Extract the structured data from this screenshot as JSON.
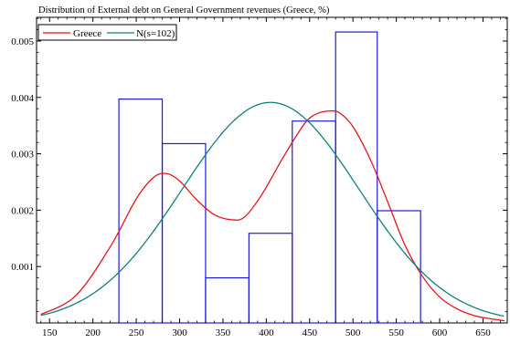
{
  "chart_data": {
    "type": "histogram",
    "title": "Distribution of External debt on General Government revenues (Greece, %)",
    "xlabel": "",
    "ylabel": "",
    "xlim": [
      135,
      678
    ],
    "ylim": [
      0,
      0.00542
    ],
    "x_ticks": [
      150,
      200,
      250,
      300,
      350,
      400,
      450,
      500,
      550,
      600,
      650
    ],
    "y_ticks": [
      0.001,
      0.002,
      0.003,
      0.004,
      0.005
    ],
    "grid": false,
    "legend_position": "top-left",
    "bins": [
      {
        "start": 230,
        "end": 280,
        "density": 0.00397
      },
      {
        "start": 280,
        "end": 330,
        "density": 0.00318
      },
      {
        "start": 330,
        "end": 380,
        "density": 0.0008
      },
      {
        "start": 380,
        "end": 430,
        "density": 0.00159
      },
      {
        "start": 430,
        "end": 480,
        "density": 0.00358
      },
      {
        "start": 480,
        "end": 528,
        "density": 0.00516
      },
      {
        "start": 528,
        "end": 578,
        "density": 0.00199
      }
    ],
    "series": [
      {
        "name": "Greece",
        "type": "density",
        "color": "#e8141e",
        "x": [
          140,
          180,
          220,
          250,
          270,
          285,
          300,
          320,
          340,
          360,
          375,
          395,
          420,
          445,
          460,
          475,
          485,
          500,
          520,
          540,
          560,
          580,
          600,
          620,
          640,
          660,
          675
        ],
        "y": [
          0.00015,
          0.00048,
          0.00135,
          0.0022,
          0.00258,
          0.00265,
          0.00252,
          0.00218,
          0.00192,
          0.00183,
          0.00188,
          0.00228,
          0.00295,
          0.00355,
          0.00372,
          0.00376,
          0.00372,
          0.00348,
          0.0029,
          0.00215,
          0.00138,
          0.00083,
          0.00046,
          0.00025,
          0.00013,
          7e-05,
          4e-05
        ]
      },
      {
        "name": "N(s=102)",
        "type": "normal",
        "color": "#118080",
        "mean": 405,
        "sd": 102,
        "x_range": [
          140,
          675
        ]
      }
    ],
    "histogram_color": "#1e1ed2"
  }
}
